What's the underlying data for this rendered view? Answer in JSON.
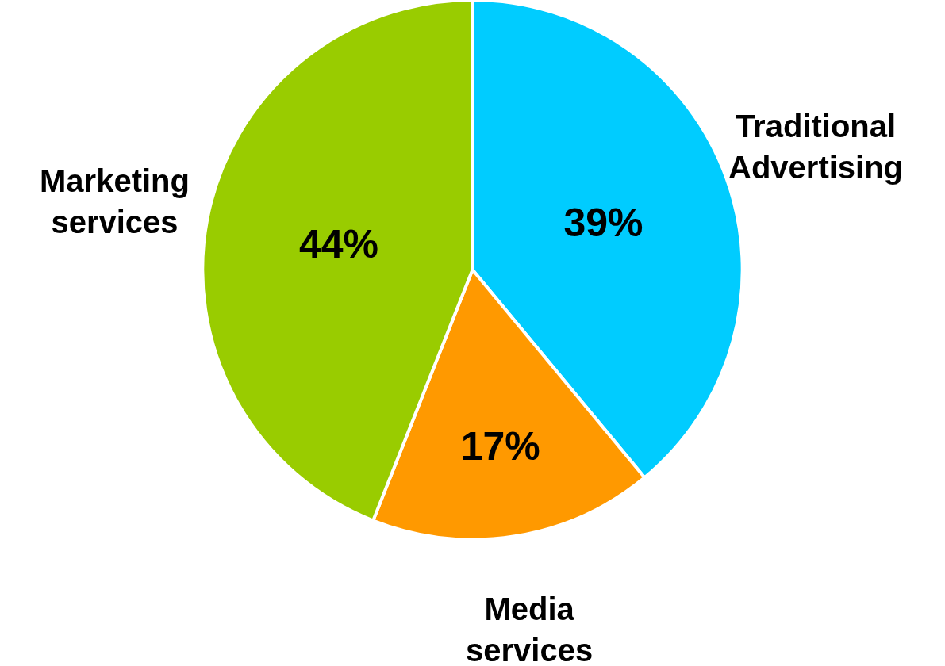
{
  "chart_data": {
    "type": "pie",
    "categories": [
      "Traditional Advertising",
      "Media services",
      "Marketing services"
    ],
    "values": [
      39,
      17,
      44
    ],
    "colors": [
      "#00ccff",
      "#ff9900",
      "#99cc00"
    ],
    "value_labels": [
      "39%",
      "17%",
      "44%"
    ],
    "legend": false
  }
}
